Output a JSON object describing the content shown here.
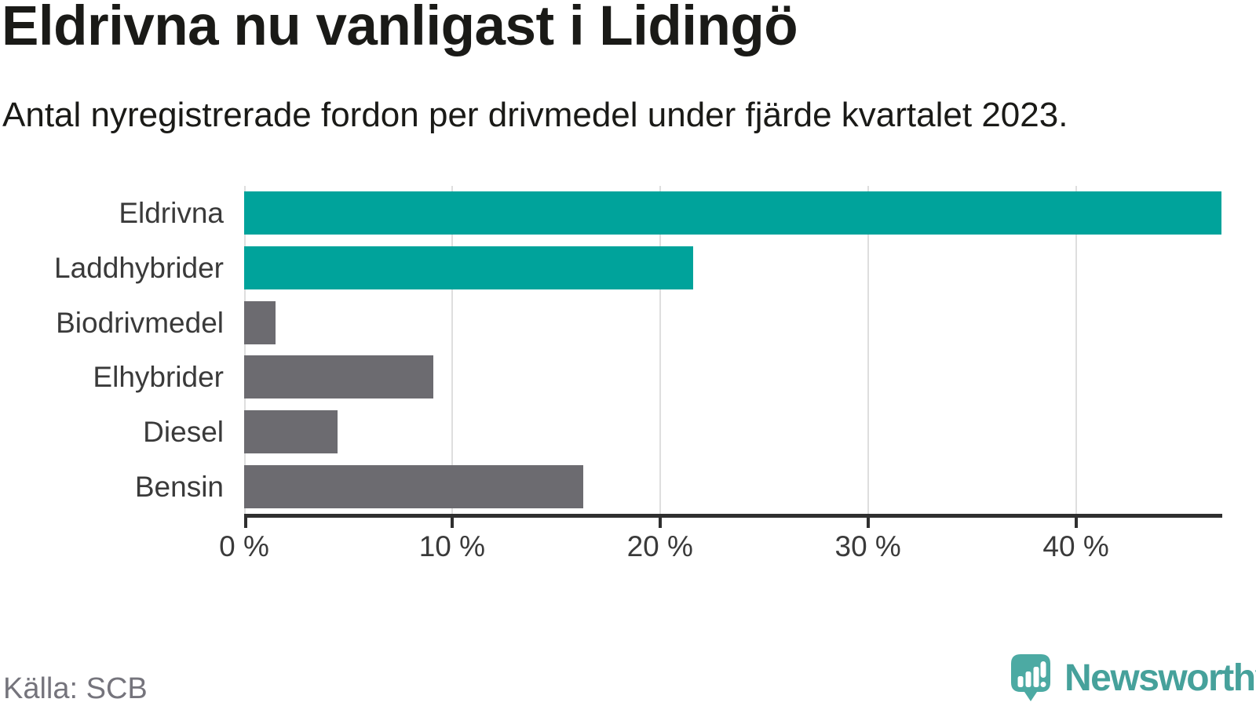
{
  "chart_data": {
    "type": "bar",
    "orientation": "horizontal",
    "title": "Eldrivna nu vanligast i Lidingö",
    "subtitle": "Antal nyregistrerade fordon per drivmedel under fjärde kvartalet 2023.",
    "categories": [
      "Eldrivna",
      "Laddhybrider",
      "Biodrivmedel",
      "Elhybrider",
      "Diesel",
      "Bensin"
    ],
    "values": [
      47,
      21.6,
      1.5,
      9.1,
      4.5,
      16.3
    ],
    "unit": "%",
    "xlabel": "",
    "ylabel": "",
    "xlim": [
      0,
      47
    ],
    "x_ticks": [
      0,
      10,
      20,
      30,
      40
    ],
    "x_tick_labels": [
      "0 %",
      "10 %",
      "20 %",
      "30 %",
      "40 %"
    ],
    "grid": true,
    "legend": false,
    "bar_colors": [
      "#00a39b",
      "#00a39b",
      "#6c6b70",
      "#6c6b70",
      "#6c6b70",
      "#6c6b70"
    ],
    "colors": {
      "highlight": "#00a39b",
      "neutral": "#6c6b70",
      "gridline": "#dedede",
      "axis": "#2f2f2f",
      "tick_label": "#3a3a3a",
      "category_label": "#3a3a3a",
      "title": "#1a1a17"
    }
  },
  "footer": {
    "source": "Källa: SCB",
    "source_color": "#75747c",
    "brand": "Newsworthy",
    "brand_color": "#46a19b",
    "brand_icon": "newsworthy-pin-icon",
    "brand_icon_color": "#4caaa3"
  }
}
